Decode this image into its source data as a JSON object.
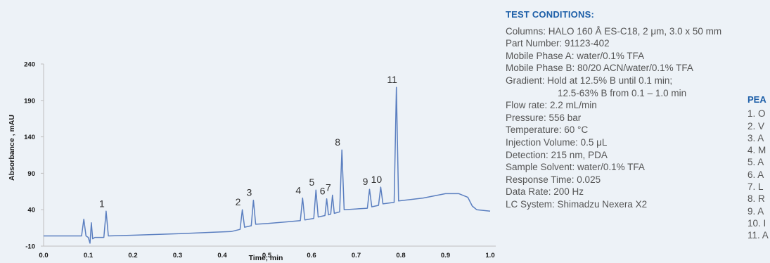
{
  "chart_data": {
    "type": "line",
    "title": "",
    "xlabel": "Time, min",
    "ylabel": "Absorbance , mAU",
    "xlim": [
      0.0,
      1.0
    ],
    "ylim": [
      -10,
      240
    ],
    "xticks": [
      "0.0",
      "0.1",
      "0.2",
      "0.3",
      "0.4",
      "0.5",
      "0.6",
      "0.7",
      "0.8",
      "0.9",
      "1.0"
    ],
    "yticks": [
      "240",
      "190",
      "140",
      "90",
      "40",
      "-10"
    ],
    "grid": false,
    "series": [
      {
        "color": "#5b7fc0",
        "points": [
          [
            0.0,
            4
          ],
          [
            0.085,
            4
          ],
          [
            0.09,
            27
          ],
          [
            0.095,
            4
          ],
          [
            0.1,
            2
          ],
          [
            0.104,
            -6
          ],
          [
            0.107,
            22
          ],
          [
            0.11,
            0
          ],
          [
            0.115,
            2
          ],
          [
            0.135,
            2
          ],
          [
            0.14,
            38
          ],
          [
            0.145,
            4
          ],
          [
            0.2,
            5
          ],
          [
            0.3,
            7
          ],
          [
            0.38,
            9
          ],
          [
            0.42,
            10
          ],
          [
            0.44,
            13
          ],
          [
            0.445,
            40
          ],
          [
            0.45,
            16
          ],
          [
            0.465,
            18
          ],
          [
            0.47,
            53
          ],
          [
            0.475,
            20
          ],
          [
            0.5,
            21
          ],
          [
            0.54,
            23
          ],
          [
            0.575,
            25
          ],
          [
            0.58,
            56
          ],
          [
            0.585,
            26
          ],
          [
            0.605,
            28
          ],
          [
            0.61,
            67
          ],
          [
            0.615,
            30
          ],
          [
            0.63,
            32
          ],
          [
            0.634,
            55
          ],
          [
            0.638,
            33
          ],
          [
            0.643,
            34
          ],
          [
            0.647,
            60
          ],
          [
            0.651,
            35
          ],
          [
            0.663,
            37
          ],
          [
            0.668,
            122
          ],
          [
            0.673,
            40
          ],
          [
            0.725,
            42
          ],
          [
            0.73,
            68
          ],
          [
            0.735,
            44
          ],
          [
            0.75,
            46
          ],
          [
            0.755,
            71
          ],
          [
            0.76,
            48
          ],
          [
            0.785,
            50
          ],
          [
            0.79,
            208
          ],
          [
            0.795,
            52
          ],
          [
            0.85,
            56
          ],
          [
            0.9,
            62
          ],
          [
            0.93,
            62
          ],
          [
            0.95,
            57
          ],
          [
            0.96,
            45
          ],
          [
            0.97,
            40
          ],
          [
            1.0,
            38
          ]
        ]
      }
    ],
    "peak_labels": [
      {
        "label": "1",
        "x": 0.14,
        "y": 38
      },
      {
        "label": "2",
        "x": 0.445,
        "y": 40
      },
      {
        "label": "3",
        "x": 0.47,
        "y": 53
      },
      {
        "label": "4",
        "x": 0.58,
        "y": 56
      },
      {
        "label": "5",
        "x": 0.61,
        "y": 67
      },
      {
        "label": "6",
        "x": 0.634,
        "y": 55
      },
      {
        "label": "7",
        "x": 0.647,
        "y": 60
      },
      {
        "label": "8",
        "x": 0.668,
        "y": 122
      },
      {
        "label": "9",
        "x": 0.73,
        "y": 68
      },
      {
        "label": "10",
        "x": 0.755,
        "y": 71
      },
      {
        "label": "11",
        "x": 0.79,
        "y": 208
      }
    ]
  },
  "conditions": {
    "title": "TEST CONDITIONS:",
    "lines": [
      "Columns: HALO 160 Å ES-C18, 2 μm, 3.0 x 50 mm",
      "Part Number: 91123-402",
      "Mobile Phase A: water/0.1% TFA",
      "Mobile Phase B: 80/20 ACN/water/0.1% TFA",
      "Gradient: Hold at 12.5% B until 0.1 min;",
      "12.5-63% B from 0.1 – 1.0 min",
      "Flow rate: 2.2 mL/min",
      "Pressure: 556 bar",
      "Temperature: 60 °C",
      "Injection Volume: 0.5 μL",
      "Detection: 215 nm, PDA",
      "Sample Solvent: water/0.1% TFA",
      "Response Time: 0.025",
      "Data Rate: 200 Hz",
      "LC System: Shimadzu Nexera X2"
    ]
  },
  "peaks": {
    "title": "PEA",
    "items": [
      "1. O",
      "2. V",
      "3. A",
      "4. M",
      "5. A",
      "6. A",
      "7. L",
      "8. R",
      "9. A",
      "10. I",
      "11. A"
    ]
  }
}
